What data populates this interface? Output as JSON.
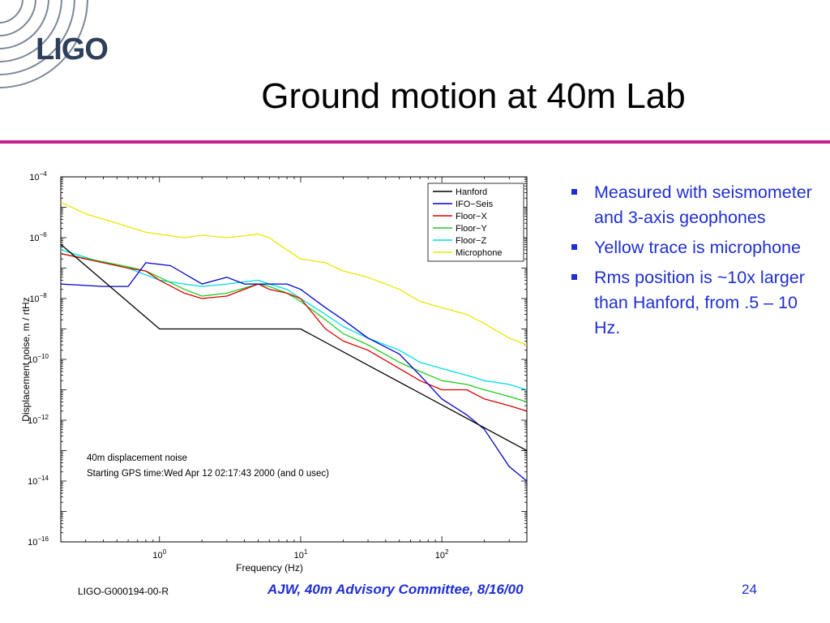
{
  "logo": {
    "text": "LIGO"
  },
  "slide": {
    "title": "Ground motion at 40m Lab"
  },
  "bullets": [
    "Measured with seismometer and 3-axis geophones",
    "Yellow trace is microphone",
    "Rms position is ~10x larger than Hanford, from .5 – 10 Hz."
  ],
  "footer": {
    "doc_id": "LIGO-G000194-00-R",
    "committee": "AJW, 40m Advisory Committee, 8/16/00",
    "page": "24"
  },
  "colors": {
    "accent_rule": "#c2228a",
    "bullet_text": "#1f2fd0",
    "logo": "#2e3f5c"
  },
  "chart_data": {
    "type": "line",
    "log_x": true,
    "log_y": true,
    "xlim": [
      0.2,
      400
    ],
    "ylim": [
      1e-16,
      0.0001
    ],
    "xlabel": "Frequency (Hz)",
    "ylabel": "Displacement noise, m / rtHz",
    "x_ticks": [
      {
        "value": 1,
        "base": "10",
        "exp": "0"
      },
      {
        "value": 10,
        "base": "10",
        "exp": "1"
      },
      {
        "value": 100,
        "base": "10",
        "exp": "2"
      }
    ],
    "y_ticks": [
      {
        "value": 0.0001,
        "base": "10",
        "exp": "−4"
      },
      {
        "value": 1e-06,
        "base": "10",
        "exp": "−6"
      },
      {
        "value": 1e-08,
        "base": "10",
        "exp": "−8"
      },
      {
        "value": 1e-10,
        "base": "10",
        "exp": "−10"
      },
      {
        "value": 1e-12,
        "base": "10",
        "exp": "−12"
      },
      {
        "value": 1e-14,
        "base": "10",
        "exp": "−14"
      },
      {
        "value": 1e-16,
        "base": "10",
        "exp": "−16"
      }
    ],
    "grid": false,
    "legend_position": "top-right",
    "annotations": [
      "40m displacement noise",
      "Starting GPS time:Wed Apr 12 02:17:43 2000 (and 0 usec)"
    ],
    "series": [
      {
        "name": "Hanford",
        "color": "#000000",
        "x": [
          0.2,
          1,
          10,
          400
        ],
        "y": [
          6e-07,
          1e-09,
          1e-09,
          1e-13
        ]
      },
      {
        "name": "IFO−Seis",
        "color": "#0000cc",
        "x": [
          0.2,
          0.4,
          0.6,
          0.8,
          1.2,
          2,
          3,
          4,
          5,
          6,
          8,
          10,
          15,
          20,
          30,
          50,
          70,
          100,
          150,
          200,
          300,
          400
        ],
        "y": [
          3e-08,
          2.5e-08,
          2.5e-08,
          1.5e-07,
          1.2e-07,
          3e-08,
          5e-08,
          3e-08,
          3e-08,
          3e-08,
          3e-08,
          2e-08,
          5e-09,
          2e-09,
          5e-10,
          1.5e-10,
          3e-11,
          5e-12,
          1.5e-12,
          5e-13,
          3e-14,
          1e-14
        ]
      },
      {
        "name": "Floor−X",
        "color": "#dd0000",
        "x": [
          0.2,
          0.4,
          0.6,
          0.8,
          1,
          1.5,
          2,
          3,
          5,
          6,
          8,
          10,
          15,
          20,
          30,
          50,
          70,
          100,
          150,
          200,
          300,
          400
        ],
        "y": [
          3e-07,
          1.5e-07,
          1e-07,
          8e-08,
          4e-08,
          1.5e-08,
          1e-08,
          1.2e-08,
          3e-08,
          2e-08,
          1.5e-08,
          1e-08,
          1e-09,
          4e-10,
          2e-10,
          5e-11,
          2e-11,
          1e-11,
          1e-11,
          5e-12,
          3e-12,
          2e-12
        ]
      },
      {
        "name": "Floor−Y",
        "color": "#22cc22",
        "x": [
          0.2,
          0.4,
          0.6,
          0.8,
          1,
          1.5,
          2,
          3,
          5,
          6,
          8,
          10,
          15,
          20,
          30,
          50,
          70,
          100,
          150,
          200,
          300,
          400
        ],
        "y": [
          3e-07,
          1.6e-07,
          1.1e-07,
          8e-08,
          5e-08,
          2e-08,
          1.2e-08,
          1.5e-08,
          3e-08,
          2.5e-08,
          1.5e-08,
          8e-09,
          2e-09,
          7e-10,
          3e-10,
          8e-11,
          4e-11,
          2e-11,
          1.5e-11,
          1e-11,
          6e-12,
          4e-12
        ]
      },
      {
        "name": "Floor−Z",
        "color": "#00dddd",
        "x": [
          0.2,
          0.4,
          0.6,
          0.8,
          1,
          1.5,
          2,
          3,
          5,
          6,
          8,
          10,
          15,
          20,
          30,
          50,
          70,
          100,
          150,
          200,
          300,
          400
        ],
        "y": [
          4e-07,
          1.5e-07,
          1e-07,
          6e-08,
          4e-08,
          3e-08,
          2.5e-08,
          3e-08,
          4e-08,
          3e-08,
          2e-08,
          1e-08,
          3e-09,
          1.2e-09,
          5e-10,
          2e-10,
          8e-11,
          5e-11,
          3e-11,
          2e-11,
          1.5e-11,
          1e-11
        ]
      },
      {
        "name": "Microphone",
        "color": "#e8e800",
        "x": [
          0.2,
          0.3,
          0.5,
          0.8,
          1,
          1.5,
          2,
          3,
          5,
          6,
          7,
          8,
          10,
          15,
          20,
          30,
          50,
          70,
          100,
          150,
          200,
          300,
          400
        ],
        "y": [
          1.5e-05,
          6e-06,
          3e-06,
          1.5e-06,
          1.3e-06,
          1e-06,
          1.2e-06,
          1e-06,
          1.3e-06,
          1e-06,
          6e-07,
          4e-07,
          2e-07,
          1.5e-07,
          8e-08,
          5e-08,
          2e-08,
          8e-09,
          5e-09,
          3e-09,
          1.5e-09,
          5e-10,
          3e-10
        ]
      }
    ]
  }
}
